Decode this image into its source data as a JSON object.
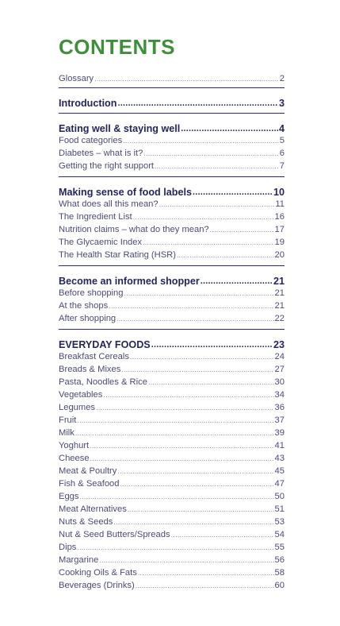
{
  "title": "CONTENTS",
  "entries": [
    {
      "label": "Glossary",
      "page": "2",
      "head": false
    },
    {
      "label": "Introduction",
      "page": "3",
      "head": true
    },
    {
      "label": "Eating well & staying well",
      "page": "4",
      "head": true
    },
    {
      "label": "Food categories",
      "page": "5",
      "head": false
    },
    {
      "label": "Diabetes – what is it?",
      "page": "6",
      "head": false
    },
    {
      "label": "Getting the right support",
      "page": "7",
      "head": false
    },
    {
      "label": "Making sense of food labels",
      "page": "10",
      "head": true
    },
    {
      "label": "What does all this mean?",
      "page": "11",
      "head": false
    },
    {
      "label": "The Ingredient List",
      "page": "16",
      "head": false
    },
    {
      "label": "Nutrition claims – what do they mean?",
      "page": "17",
      "head": false
    },
    {
      "label": "The Glycaemic Index",
      "page": "19",
      "head": false
    },
    {
      "label": "The Health Star Rating (HSR)",
      "page": "20",
      "head": false
    },
    {
      "label": "Become an informed shopper",
      "page": "21",
      "head": true
    },
    {
      "label": "Before shopping",
      "page": "21",
      "head": false
    },
    {
      "label": "At the shops",
      "page": "21",
      "head": false
    },
    {
      "label": "After shopping",
      "page": "22",
      "head": false
    },
    {
      "label": "EVERYDAY FOODS",
      "page": "23",
      "head": true
    },
    {
      "label": "Breakfast Cereals",
      "page": "24",
      "head": false
    },
    {
      "label": "Breads & Mixes",
      "page": "27",
      "head": false
    },
    {
      "label": "Pasta, Noodles & Rice",
      "page": "30",
      "head": false
    },
    {
      "label": "Vegetables",
      "page": "34",
      "head": false
    },
    {
      "label": "Legumes",
      "page": "36",
      "head": false
    },
    {
      "label": "Fruit",
      "page": "37",
      "head": false
    },
    {
      "label": "Milk",
      "page": "39",
      "head": false
    },
    {
      "label": "Yoghurt",
      "page": "41",
      "head": false
    },
    {
      "label": "Cheese",
      "page": "43",
      "head": false
    },
    {
      "label": "Meat & Poultry",
      "page": "45",
      "head": false
    },
    {
      "label": "Fish & Seafood",
      "page": "47",
      "head": false
    },
    {
      "label": "Eggs",
      "page": "50",
      "head": false
    },
    {
      "label": "Meat Alternatives",
      "page": "51",
      "head": false
    },
    {
      "label": "Nuts & Seeds",
      "page": "53",
      "head": false
    },
    {
      "label": "Nut & Seed Butters/Spreads",
      "page": "54",
      "head": false
    },
    {
      "label": "Dips",
      "page": "55",
      "head": false
    },
    {
      "label": "Margarine",
      "page": "56",
      "head": false
    },
    {
      "label": "Cooking Oils & Fats",
      "page": "58",
      "head": false
    },
    {
      "label": "Beverages (Drinks)",
      "page": "60",
      "head": false
    }
  ]
}
